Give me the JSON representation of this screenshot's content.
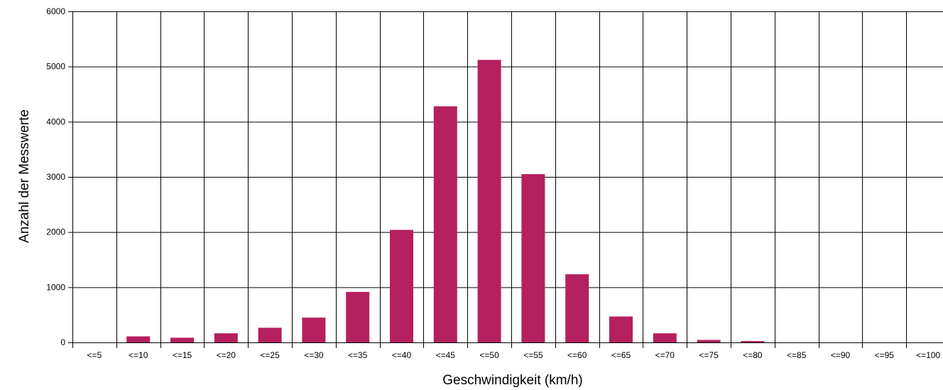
{
  "chart_data": {
    "type": "bar",
    "title": "",
    "xlabel": "Geschwindigkeit (km/h)",
    "ylabel": "Anzahl der Messwerte",
    "categories": [
      "<=5",
      "<=10",
      "<=15",
      "<=20",
      "<=25",
      "<=30",
      "<=35",
      "<=40",
      "<=45",
      "<=50",
      "<=55",
      "<=60",
      "<=65",
      "<=70",
      "<=75",
      "<=80",
      "<=85",
      "<=90",
      "<=95",
      "<=100"
    ],
    "values": [
      0,
      110,
      85,
      165,
      265,
      450,
      915,
      2040,
      4280,
      5120,
      3050,
      1235,
      470,
      165,
      45,
      25,
      0,
      0,
      0,
      0
    ],
    "ylim": [
      0,
      6000
    ],
    "yticks": [
      "0",
      "1000",
      "2000",
      "3000",
      "4000",
      "5000",
      "6000"
    ],
    "grid": true,
    "colors": {
      "bar": "#b5205f",
      "grid": "#000000"
    }
  }
}
